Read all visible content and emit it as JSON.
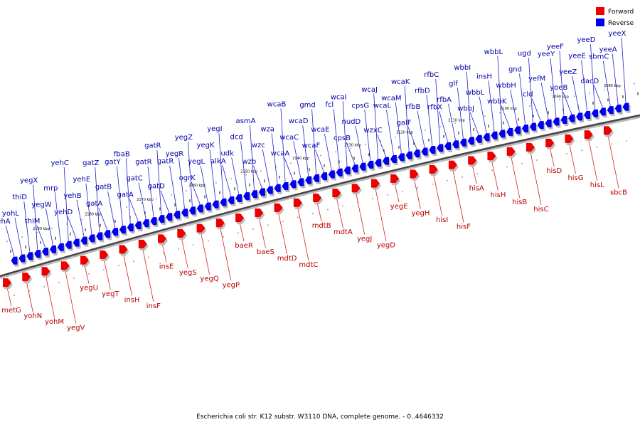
{
  "caption": "Escherichia coli str. K12 substr. W3110 DNA, complete genome. - 0..4646332",
  "legend": [
    {
      "label": "Forward",
      "color": "#ee0000"
    },
    {
      "label": "Reverse",
      "color": "#0000ee"
    }
  ],
  "ticks": [
    "2190 kbp",
    "2180 kbp",
    "2170 kbp",
    "2160 kbp",
    "2150 kbp",
    "2140 kbp",
    "2130 kbp",
    "2120 kbp",
    "2110 kbp",
    "2100 kbp",
    "2090 kbp",
    "2080 kbp"
  ],
  "forward_genes": [
    "metG",
    "yohN",
    "yohM",
    "yegV",
    "yegU",
    "yegT",
    "insH",
    "insF",
    "insE",
    "yegS",
    "yegQ",
    "yegP",
    "baeR",
    "baeS",
    "mdtD",
    "mdtC",
    "mdtB",
    "mdtA",
    "yegJ",
    "yegD",
    "yegE",
    "yegH",
    "hisI",
    "hisF",
    "hisA",
    "hisH",
    "hisB",
    "hisC",
    "hisD",
    "hisG",
    "hisL",
    "sbcB"
  ],
  "reverse_genes": [
    "yehA",
    "yohL",
    "thiD",
    "yegX",
    "thiM",
    "yegW",
    "mrp",
    "yehC",
    "yehD",
    "yehB",
    "yehE",
    "gatZ",
    "gatA",
    "gatB",
    "gatY",
    "fbaB",
    "gatA",
    "gatC",
    "gatR",
    "gatR",
    "gatD",
    "gatR",
    "yegR",
    "yegZ",
    "ogrK",
    "yegL",
    "yegK",
    "yegI",
    "alkA",
    "udk",
    "dcd",
    "asmA",
    "wzb",
    "wzc",
    "wza",
    "wcaB",
    "wcaA",
    "wcaC",
    "wcaD",
    "gmd",
    "wcaF",
    "wcaE",
    "fcl",
    "wcaI",
    "cpsB",
    "nudD",
    "cpsG",
    "wcaJ",
    "wzxC",
    "wcaL",
    "wcaM",
    "wcaK",
    "galF",
    "rfbB",
    "rfbD",
    "rfbC",
    "rfbX",
    "rfbA",
    "glf",
    "wbbI",
    "wbbJ",
    "wbbL",
    "insH",
    "wbbL",
    "wbbK",
    "wbbH",
    "gnd",
    "ugd",
    "cld",
    "yefM",
    "yeeY",
    "yeeF",
    "yoeB",
    "yeeZ",
    "yeeE",
    "yeeD",
    "dacD",
    "sbmC",
    "yeeA",
    "yeeX"
  ]
}
